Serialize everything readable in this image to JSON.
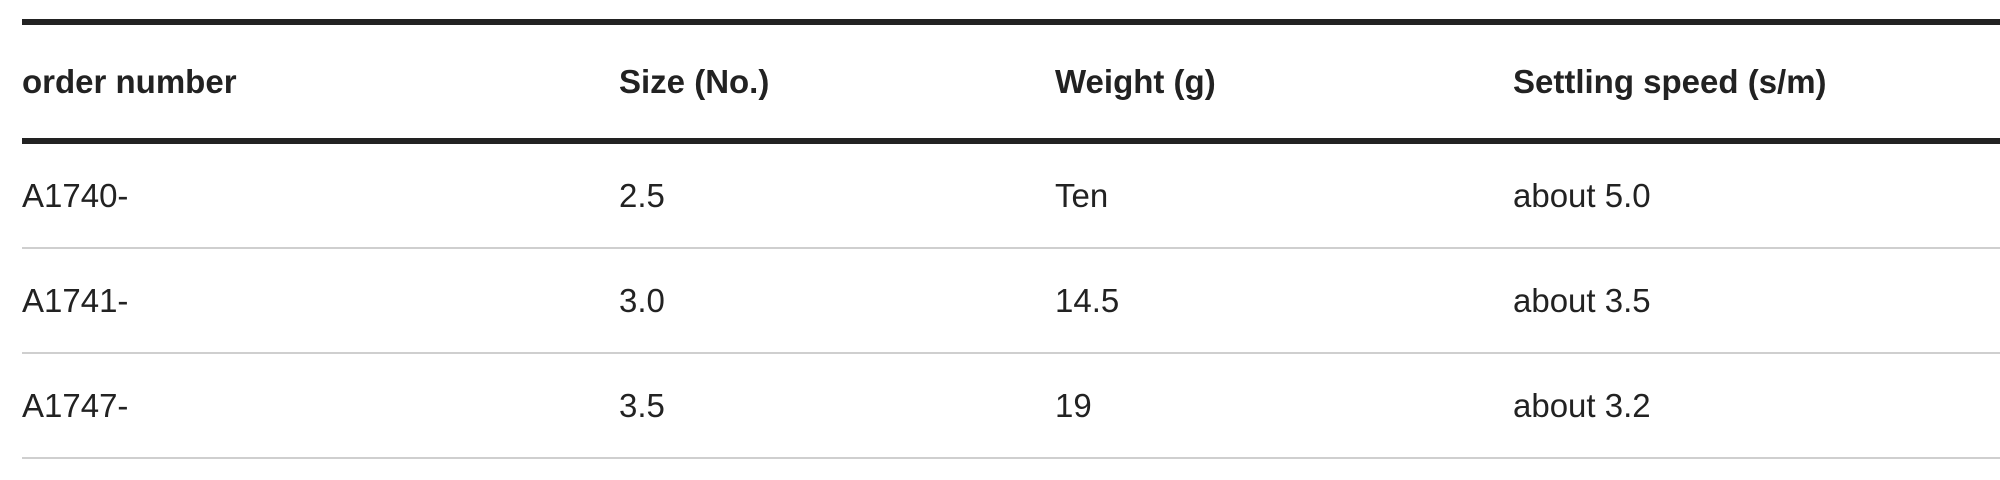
{
  "table": {
    "headers": [
      "order number",
      "Size (No.)",
      "Weight (g)",
      "Settling speed (s/m)"
    ],
    "rows": [
      [
        "A1740-",
        "2.5",
        "Ten",
        "about 5.0"
      ],
      [
        "A1741-",
        "3.0",
        "14.5",
        "about 3.5"
      ],
      [
        "A1747-",
        "3.5",
        "19",
        "about 3.2"
      ]
    ]
  }
}
